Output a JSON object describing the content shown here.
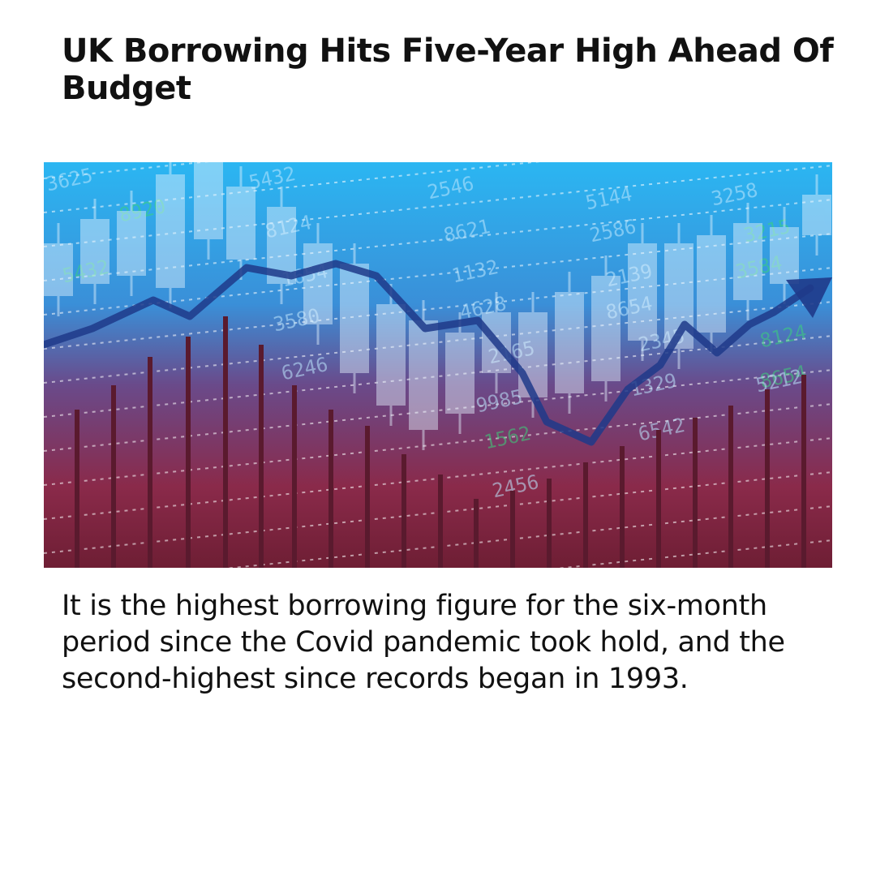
{
  "article": {
    "headline": "UK Borrowing Hits Five-Year High Ahead Of Budget",
    "body": "It is the highest borrowing figure for the six-month period since the Covid pandemic took hold, and the second-highest since records began in 1993."
  },
  "hero_image": {
    "icon": "uk-flag-bar-chart-illustration",
    "background_numbers": [
      "3625",
      "5432",
      "8920",
      "2546",
      "5144",
      "3258",
      "5432",
      "8124",
      "8621",
      "2586",
      "3215",
      "1654",
      "1132",
      "2139",
      "3584",
      "3580",
      "4628",
      "8654",
      "8124",
      "6246",
      "2165",
      "2345",
      "8654",
      "9985",
      "1329",
      "5212",
      "1562",
      "6542",
      "2456"
    ],
    "colors": {
      "sky_top": "#2bb6f2",
      "sky_mid": "#3a72c8",
      "dusk": "#8a2a4a",
      "flag_red": "#e8262b",
      "flag_white": "#ffffff",
      "flag_blue": "#23358a",
      "trend_arrow": "#1f3a8a"
    }
  }
}
